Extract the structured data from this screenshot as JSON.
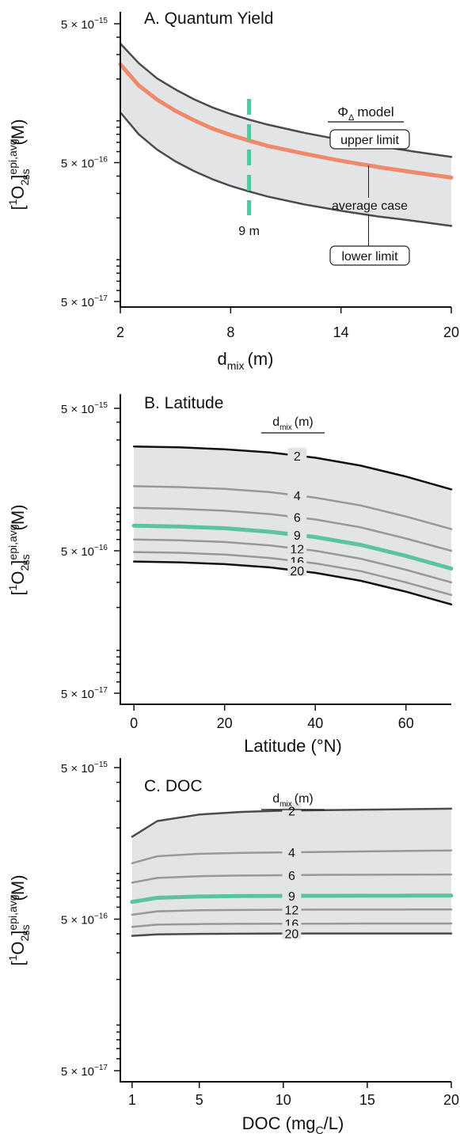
{
  "chart_data": [
    {
      "type": "line",
      "title": "A. Quantum Yield",
      "xlabel_main": "d",
      "xlabel_sub": "mix",
      "xlabel_tail": "(m)",
      "xlim": [
        2,
        20
      ],
      "xticks": [
        2,
        8,
        14,
        20
      ],
      "ylim": [
        5e-17,
        5e-15
      ],
      "yscale": "log",
      "yticks": [
        {
          "value": 5e-15,
          "label": "5 × 10",
          "exp": "−15"
        },
        {
          "value": 5e-16,
          "label": "5 × 10",
          "exp": "−16"
        },
        {
          "value": 5e-17,
          "label": "5 × 10",
          "exp": "−17"
        }
      ],
      "legend_title_sym": "Φ",
      "legend_title_sub": "Δ",
      "legend_title_tail": "model",
      "marker": {
        "x": 9,
        "label": "9 m",
        "color": "#5bc3a3"
      },
      "x": [
        2,
        3,
        4,
        5,
        6,
        7,
        8,
        9,
        10,
        12,
        14,
        16,
        18,
        20
      ],
      "series": [
        {
          "name": "upper limit",
          "color": "#4a4a4f",
          "values": [
            3.6e-15,
            2.6e-15,
            2.02e-15,
            1.68e-15,
            1.43e-15,
            1.25e-15,
            1.12e-15,
            1.02e-15,
            9.4e-16,
            8.2e-16,
            7.3e-16,
            6.6e-16,
            6e-16,
            5.5e-16
          ]
        },
        {
          "name": "average case",
          "color": "#f0886a",
          "values": [
            2.55e-15,
            1.8e-15,
            1.42e-15,
            1.18e-15,
            1.01e-15,
            8.8e-16,
            7.9e-16,
            7.2e-16,
            6.6e-16,
            5.8e-16,
            5.15e-16,
            4.65e-16,
            4.25e-16,
            3.9e-16
          ]
        },
        {
          "name": "lower limit",
          "color": "#4a4a4f",
          "values": [
            1.15e-15,
            8e-16,
            6.2e-16,
            5.1e-16,
            4.35e-16,
            3.8e-16,
            3.4e-16,
            3.1e-16,
            2.85e-16,
            2.5e-16,
            2.25e-16,
            2.05e-16,
            1.9e-16,
            1.75e-16
          ]
        }
      ]
    },
    {
      "type": "line",
      "title": "B. Latitude",
      "xlabel": "Latitude (°N)",
      "xlim": [
        -3,
        70
      ],
      "xticks": [
        0,
        20,
        40,
        60
      ],
      "ylim": [
        5e-17,
        5e-15
      ],
      "yscale": "log",
      "yticks": [
        {
          "value": 5e-15,
          "label": "5 × 10",
          "exp": "−15"
        },
        {
          "value": 5e-16,
          "label": "5 × 10",
          "exp": "−16"
        },
        {
          "value": 5e-17,
          "label": "5 × 10",
          "exp": "−17"
        }
      ],
      "legend_title_main": "d",
      "legend_title_sub": "mix",
      "legend_title_tail": "(m)",
      "label_x": 36,
      "x": [
        0,
        10,
        20,
        30,
        40,
        50,
        60,
        70
      ],
      "series": [
        {
          "name": "2",
          "color": "#111111",
          "values": [
            2.7e-15,
            2.66e-15,
            2.58e-15,
            2.45e-15,
            2.25e-15,
            1.98e-15,
            1.66e-15,
            1.35e-15
          ]
        },
        {
          "name": "4",
          "color": "#98989c",
          "values": [
            1.42e-15,
            1.4e-15,
            1.36e-15,
            1.29e-15,
            1.18e-15,
            1.04e-15,
            8.7e-16,
            7.1e-16
          ]
        },
        {
          "name": "6",
          "color": "#98989c",
          "values": [
            1e-15,
            9.85e-16,
            9.55e-16,
            9.05e-16,
            8.3e-16,
            7.3e-16,
            6.1e-16,
            5e-16
          ]
        },
        {
          "name": "9",
          "color": "#5bc3a3",
          "values": [
            7.5e-16,
            7.4e-16,
            7.2e-16,
            6.8e-16,
            6.25e-16,
            5.5e-16,
            4.6e-16,
            3.75e-16
          ]
        },
        {
          "name": "12",
          "color": "#98989c",
          "values": [
            6e-16,
            5.92e-16,
            5.76e-16,
            5.45e-16,
            5e-16,
            4.4e-16,
            3.68e-16,
            3e-16
          ]
        },
        {
          "name": "16",
          "color": "#98989c",
          "values": [
            4.9e-16,
            4.84e-16,
            4.7e-16,
            4.45e-16,
            4.08e-16,
            3.6e-16,
            3e-16,
            2.45e-16
          ]
        },
        {
          "name": "20",
          "color": "#111111",
          "values": [
            4.2e-16,
            4.15e-16,
            4.03e-16,
            3.82e-16,
            3.5e-16,
            3.08e-16,
            2.58e-16,
            2.1e-16
          ]
        }
      ]
    },
    {
      "type": "line",
      "title": "C. DOC",
      "xlabel_main": "DOC (mg",
      "xlabel_sub": "C",
      "xlabel_tail": "/L)",
      "xlim": [
        0.3,
        20
      ],
      "xticks": [
        1,
        5,
        10,
        15,
        20
      ],
      "ylim": [
        5e-17,
        5e-15
      ],
      "yscale": "log",
      "yticks": [
        {
          "value": 5e-15,
          "label": "5 × 10",
          "exp": "−15"
        },
        {
          "value": 5e-16,
          "label": "5 × 10",
          "exp": "−16"
        },
        {
          "value": 5e-17,
          "label": "5 × 10",
          "exp": "−17"
        }
      ],
      "legend_title_main": "d",
      "legend_title_sub": "mix",
      "legend_title_tail": "(m)",
      "label_x": 10.5,
      "x": [
        1,
        2.5,
        5,
        7.5,
        10,
        12.5,
        15,
        17.5,
        20
      ],
      "series": [
        {
          "name": "2",
          "color": "#4a4a4f",
          "values": [
            1.75e-15,
            2.22e-15,
            2.45e-15,
            2.55e-15,
            2.6e-15,
            2.62e-15,
            2.64e-15,
            2.66e-15,
            2.68e-15
          ]
        },
        {
          "name": "4",
          "color": "#98989c",
          "values": [
            1.17e-15,
            1.3e-15,
            1.35e-15,
            1.37e-15,
            1.38e-15,
            1.39e-15,
            1.4e-15,
            1.41e-15,
            1.42e-15
          ]
        },
        {
          "name": "6",
          "color": "#98989c",
          "values": [
            8.7e-16,
            9.35e-16,
            9.6e-16,
            9.7e-16,
            9.75e-16,
            9.8e-16,
            9.82e-16,
            9.84e-16,
            9.85e-16
          ]
        },
        {
          "name": "9",
          "color": "#5bc3a3",
          "values": [
            6.5e-16,
            6.92e-16,
            7.05e-16,
            7.1e-16,
            7.12e-16,
            7.13e-16,
            7.14e-16,
            7.15e-16,
            7.15e-16
          ]
        },
        {
          "name": "12",
          "color": "#98989c",
          "values": [
            5.35e-16,
            5.63e-16,
            5.72e-16,
            5.75e-16,
            5.77e-16,
            5.78e-16,
            5.78e-16,
            5.79e-16,
            5.79e-16
          ]
        },
        {
          "name": "16",
          "color": "#98989c",
          "values": [
            4.45e-16,
            4.6e-16,
            4.64e-16,
            4.66e-16,
            4.67e-16,
            4.67e-16,
            4.68e-16,
            4.68e-16,
            4.68e-16
          ]
        },
        {
          "name": "20",
          "color": "#4a4a4f",
          "values": [
            3.88e-16,
            3.97e-16,
            4e-16,
            4.01e-16,
            4.02e-16,
            4.02e-16,
            4.02e-16,
            4.02e-16,
            4.02e-16
          ]
        }
      ]
    }
  ],
  "ylabel": {
    "pre": "[",
    "sup1": "1",
    "main": "O",
    "sub1": "2",
    "post": "]",
    "sup2": "epi,avg",
    "sub2": "ss",
    "unit": "(M)"
  }
}
